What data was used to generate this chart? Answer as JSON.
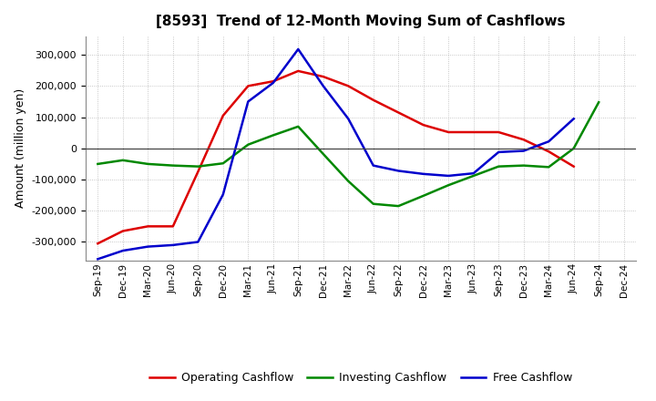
{
  "title": "[8593]  Trend of 12-Month Moving Sum of Cashflows",
  "ylabel": "Amount (million yen)",
  "ylim": [
    -360000,
    360000
  ],
  "yticks": [
    -300000,
    -200000,
    -100000,
    0,
    100000,
    200000,
    300000
  ],
  "background_color": "#ffffff",
  "plot_bg_color": "#ffffff",
  "grid_color": "#999999",
  "x_labels": [
    "Sep-19",
    "Dec-19",
    "Mar-20",
    "Jun-20",
    "Sep-20",
    "Dec-20",
    "Mar-21",
    "Jun-21",
    "Sep-21",
    "Dec-21",
    "Mar-22",
    "Jun-22",
    "Sep-22",
    "Dec-22",
    "Mar-23",
    "Jun-23",
    "Sep-23",
    "Dec-23",
    "Mar-24",
    "Jun-24",
    "Sep-24",
    "Dec-24"
  ],
  "operating": [
    -305000,
    -265000,
    -250000,
    -250000,
    -75000,
    105000,
    200000,
    215000,
    248000,
    230000,
    200000,
    155000,
    115000,
    75000,
    52000,
    52000,
    52000,
    28000,
    -10000,
    -58000,
    null,
    null
  ],
  "investing": [
    -50000,
    -38000,
    -50000,
    -55000,
    -58000,
    -48000,
    12000,
    42000,
    70000,
    -18000,
    -105000,
    -178000,
    -185000,
    -152000,
    -118000,
    -88000,
    -58000,
    -55000,
    -60000,
    0,
    148000,
    null
  ],
  "free": [
    -355000,
    -328000,
    -315000,
    -310000,
    -300000,
    -148000,
    150000,
    210000,
    318000,
    200000,
    95000,
    -55000,
    -72000,
    -82000,
    -88000,
    -80000,
    -12000,
    -8000,
    22000,
    95000,
    null,
    null
  ],
  "op_color": "#dd0000",
  "inv_color": "#008800",
  "free_color": "#0000cc",
  "legend_labels": [
    "Operating Cashflow",
    "Investing Cashflow",
    "Free Cashflow"
  ],
  "line_width": 1.8
}
